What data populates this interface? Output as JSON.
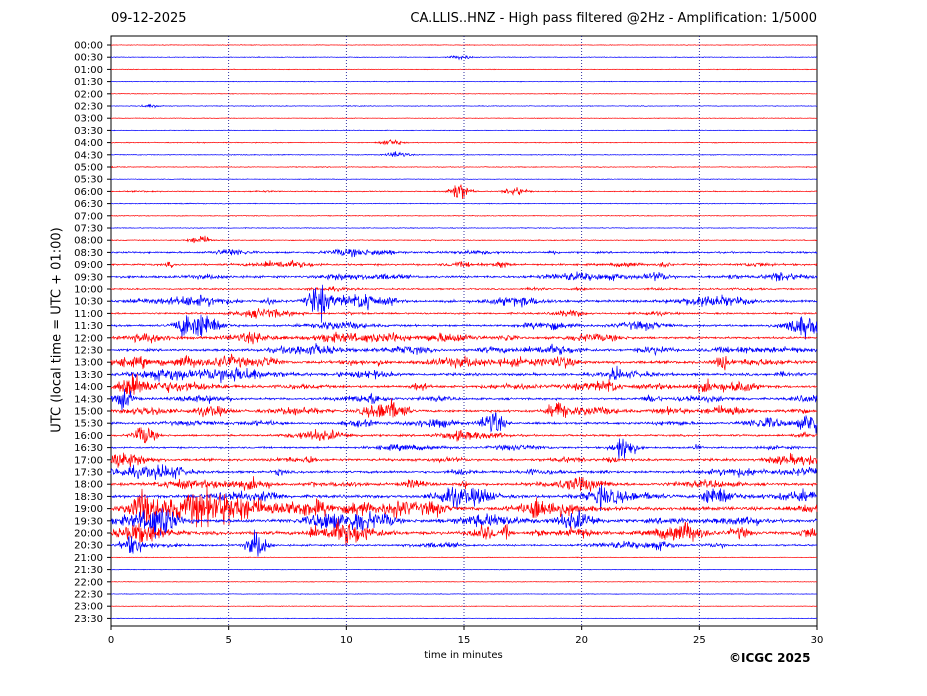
{
  "header": {
    "date": "09-12-2025",
    "title": "CA.LLIS..HNZ - High pass filtered @2Hz - Amplification: 1/5000"
  },
  "footer": {
    "copyright": "©ICGC 2025"
  },
  "colors": {
    "trace_red": "#ff0000",
    "trace_blue": "#0000ff",
    "grid": "#00008b"
  },
  "chart_data": {
    "type": "line",
    "title": "CA.LLIS..HNZ - High pass filtered @2Hz - Amplification: 1/5000",
    "xlabel": "time in minutes",
    "ylabel": "UTC (local time = UTC + 01:00)",
    "xlim": [
      0,
      30
    ],
    "x_ticks": [
      "0",
      "5",
      "10",
      "15",
      "20",
      "25",
      "30"
    ],
    "grid": "vertical dotted lines at 5, 10, 15, 20, 25",
    "row_labels": [
      "00:00",
      "00:30",
      "01:00",
      "01:30",
      "02:00",
      "02:30",
      "03:00",
      "03:30",
      "04:00",
      "04:30",
      "05:00",
      "05:30",
      "06:00",
      "06:30",
      "07:00",
      "07:30",
      "08:00",
      "08:30",
      "09:00",
      "09:30",
      "10:00",
      "10:30",
      "11:00",
      "11:30",
      "12:00",
      "12:30",
      "13:00",
      "13:30",
      "14:00",
      "14:30",
      "15:00",
      "15:30",
      "16:00",
      "16:30",
      "17:00",
      "17:30",
      "18:00",
      "18:30",
      "19:00",
      "19:30",
      "20:00",
      "20:30",
      "21:00",
      "21:30",
      "22:00",
      "22:30",
      "23:00",
      "23:30"
    ],
    "row_colors": "alternating red (even rows) and blue (odd rows)",
    "activity": [
      0,
      0.02,
      0,
      0,
      0,
      0.03,
      0,
      0,
      0.05,
      0.05,
      0.05,
      0,
      0.1,
      0.05,
      0.05,
      0.05,
      0.08,
      0.35,
      0.4,
      0.5,
      0.25,
      0.55,
      0.35,
      0.45,
      0.5,
      0.5,
      0.7,
      0.6,
      0.6,
      0.45,
      0.55,
      0.5,
      0.4,
      0.35,
      0.55,
      0.55,
      0.6,
      0.75,
      0.9,
      0.85,
      0.8,
      0.35,
      0,
      0,
      0,
      0,
      0,
      0
    ],
    "bursts": [
      {
        "row": 1,
        "minute": 14.9,
        "amp": 0.2
      },
      {
        "row": 5,
        "minute": 1.7,
        "amp": 0.15
      },
      {
        "row": 8,
        "minute": 11.9,
        "amp": 0.3
      },
      {
        "row": 9,
        "minute": 12.2,
        "amp": 0.3
      },
      {
        "row": 12,
        "minute": 14.8,
        "amp": 0.8
      },
      {
        "row": 12,
        "minute": 17.2,
        "amp": 0.4
      },
      {
        "row": 16,
        "minute": 3.8,
        "amp": 0.4
      },
      {
        "row": 21,
        "minute": 8.8,
        "amp": 1.5
      },
      {
        "row": 21,
        "minute": 10.9,
        "amp": 0.6
      },
      {
        "row": 23,
        "minute": 3.2,
        "amp": 1.1
      },
      {
        "row": 23,
        "minute": 4.0,
        "amp": 1.2
      },
      {
        "row": 28,
        "minute": 0.8,
        "amp": 0.9
      },
      {
        "row": 29,
        "minute": 0.5,
        "amp": 0.9
      },
      {
        "row": 30,
        "minute": 11.8,
        "amp": 1.1
      },
      {
        "row": 30,
        "minute": 19.0,
        "amp": 0.8
      },
      {
        "row": 31,
        "minute": 16.2,
        "amp": 1.2
      },
      {
        "row": 31,
        "minute": 29.8,
        "amp": 0.9
      },
      {
        "row": 32,
        "minute": 1.4,
        "amp": 0.9
      },
      {
        "row": 33,
        "minute": 21.8,
        "amp": 1.3
      },
      {
        "row": 38,
        "minute": 1.3,
        "amp": 1.0
      },
      {
        "row": 41,
        "minute": 0.9,
        "amp": 0.7
      },
      {
        "row": 41,
        "minute": 6.2,
        "amp": 1.2
      }
    ]
  }
}
